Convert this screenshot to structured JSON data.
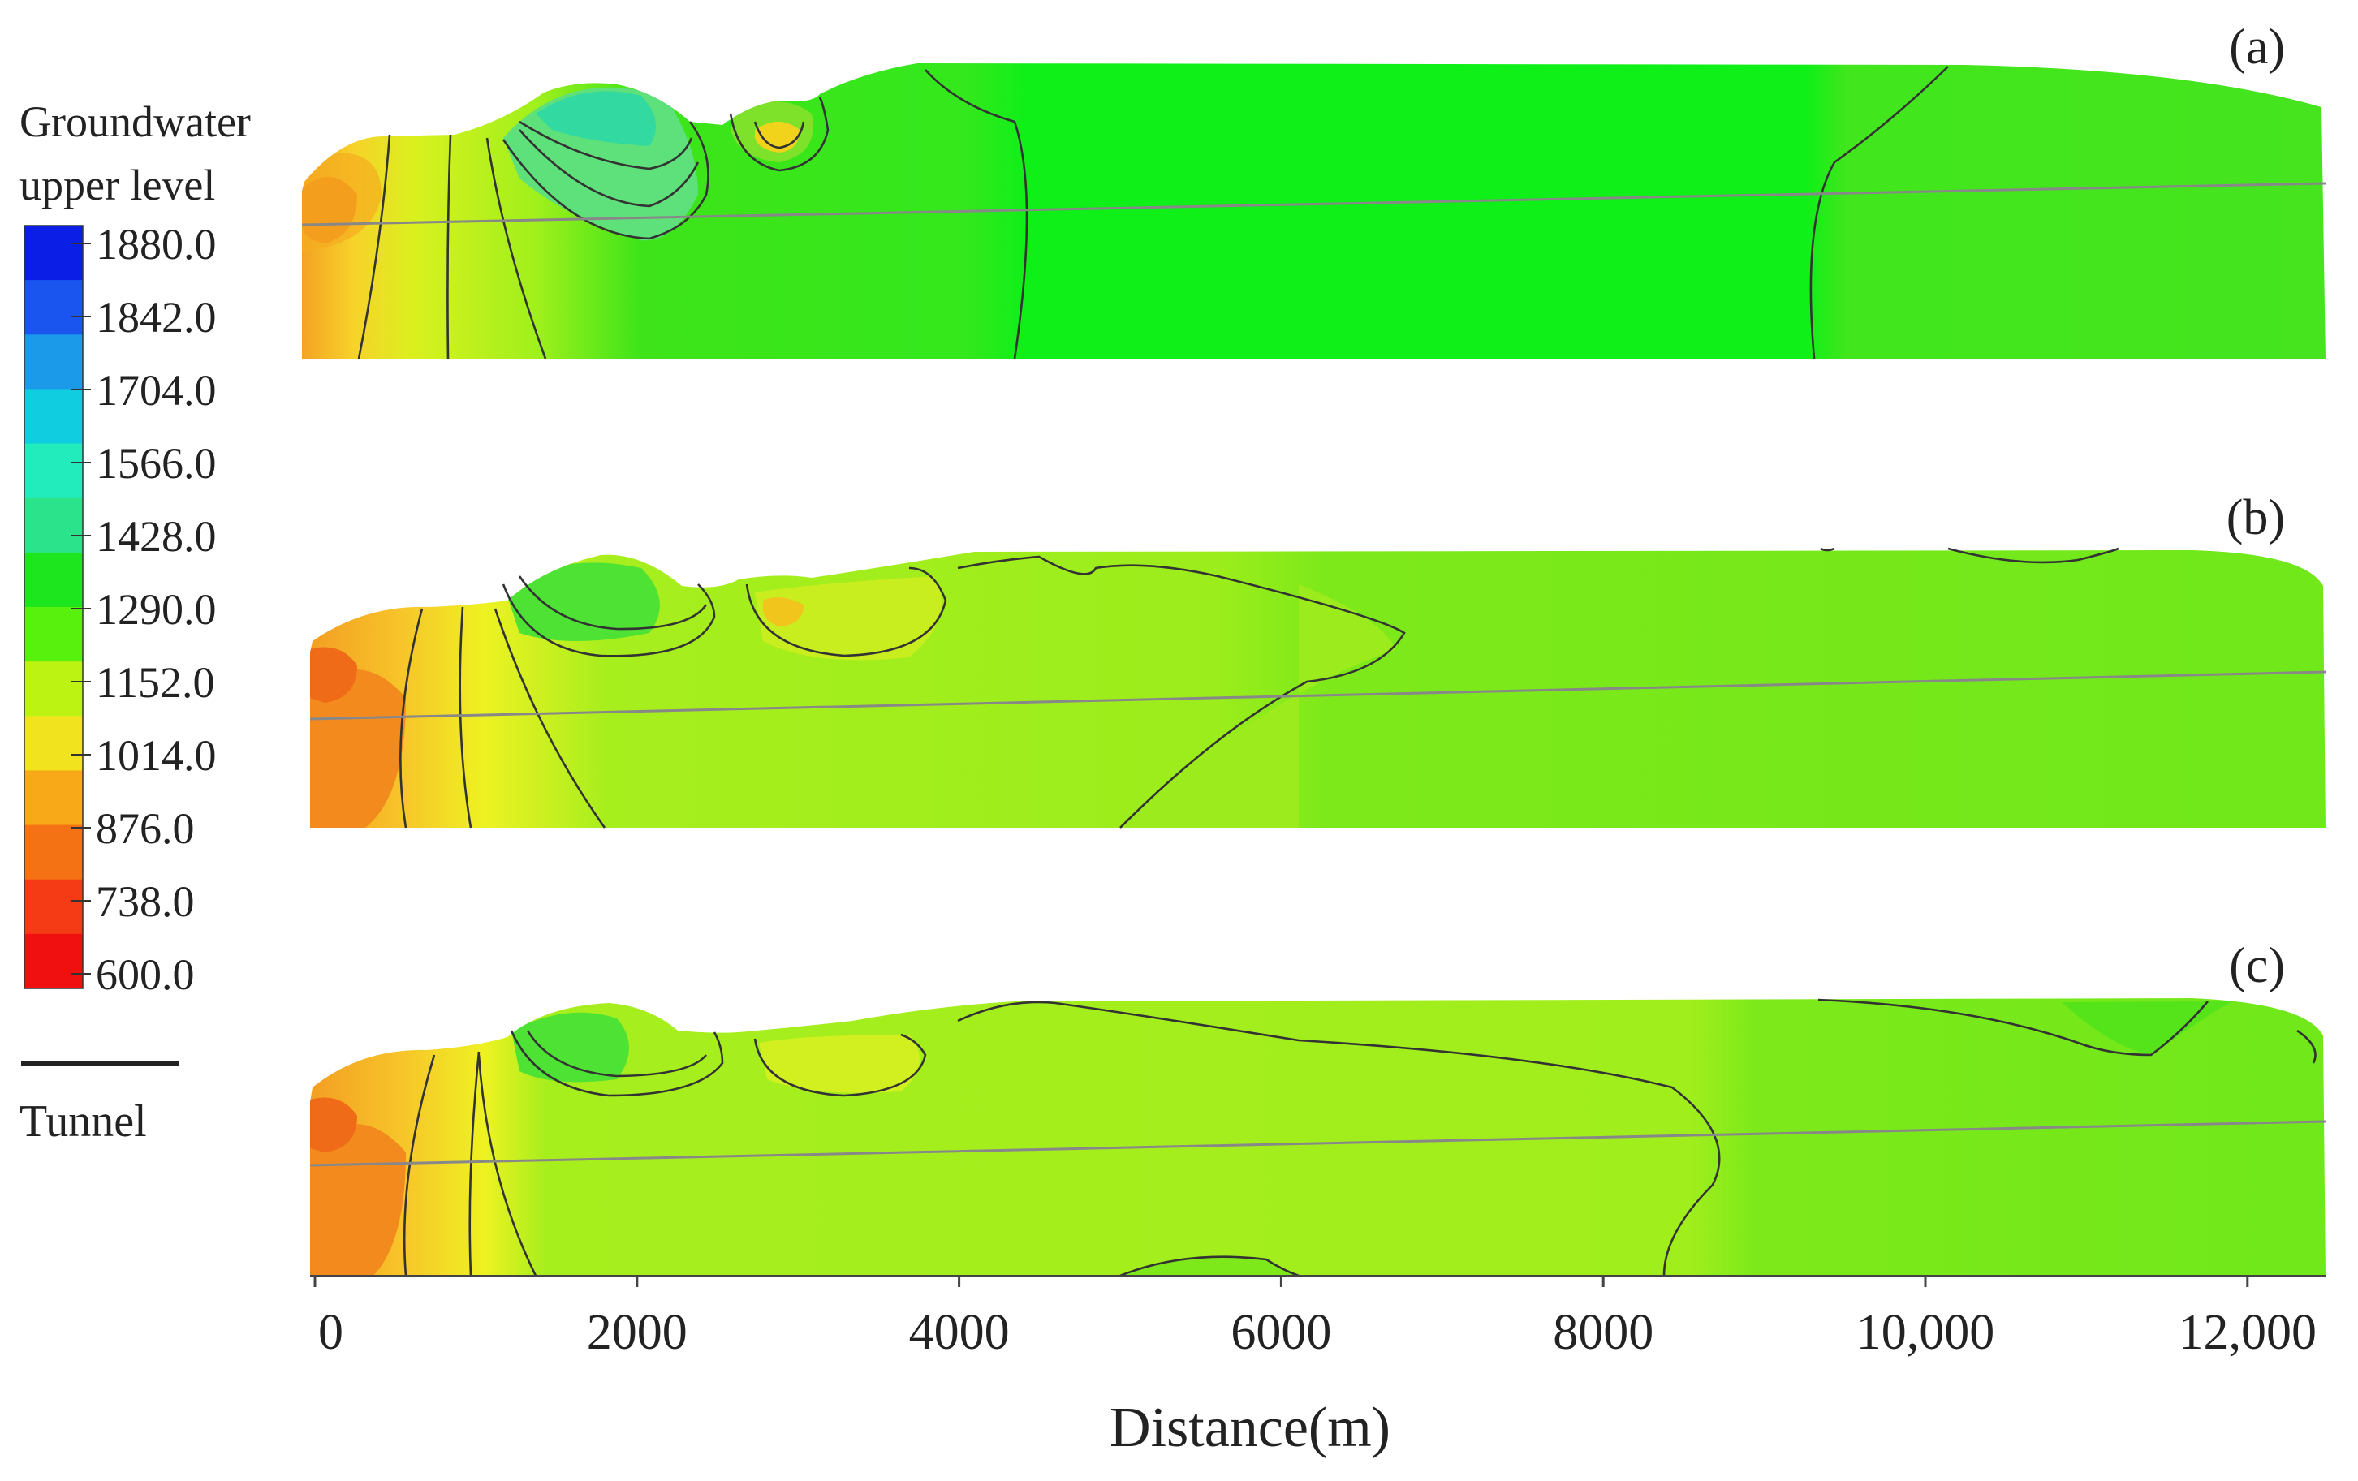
{
  "chart_data": {
    "type": "heatmap",
    "title": "",
    "xlabel": "Distance(m)",
    "x_ticks": [
      "0",
      "2000",
      "4000",
      "6000",
      "8000",
      "10,000",
      "12,000"
    ],
    "x_tick_values": [
      0,
      2000,
      4000,
      6000,
      8000,
      10000,
      12000
    ],
    "xlim": [
      0,
      12500
    ],
    "legend": {
      "title_line1": "Groundwater",
      "title_line2": "upper level",
      "levels": [
        "1880.0",
        "1842.0",
        "1704.0",
        "1566.0",
        "1428.0",
        "1290.0",
        "1152.0",
        "1014.0",
        "876.0",
        "738.0",
        "600.0"
      ],
      "colors": [
        "#0a1ee6",
        "#1a55f0",
        "#1a9ae8",
        "#10cde0",
        "#22ecbc",
        "#2ae38a",
        "#1ee61e",
        "#58f10e",
        "#bdf312",
        "#f2e31f",
        "#f7a918",
        "#f57214",
        "#f43b16",
        "#f01010"
      ]
    },
    "tunnel_legend_label": "Tunnel",
    "panels": [
      {
        "label": "(a)"
      },
      {
        "label": "(b)"
      },
      {
        "label": "(c)"
      }
    ]
  }
}
